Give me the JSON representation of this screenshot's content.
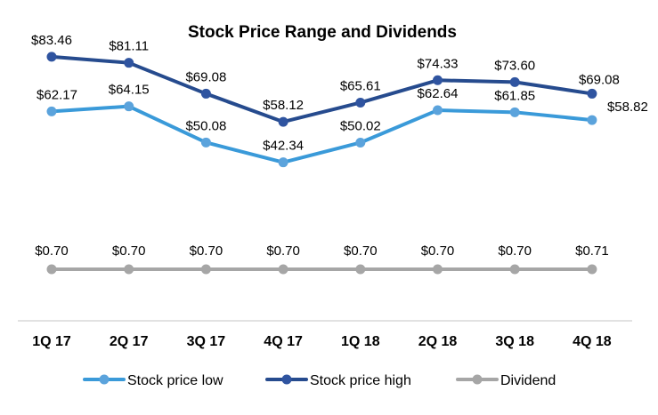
{
  "chart_data": {
    "type": "line",
    "title": "Stock Price Range and Dividends",
    "xlabel": "",
    "ylabel": "",
    "categories": [
      "1Q 17",
      "2Q 17",
      "3Q 17",
      "4Q 17",
      "1Q 18",
      "2Q 18",
      "3Q 18",
      "4Q 18"
    ],
    "ylim": [
      0,
      90
    ],
    "grid": false,
    "legend_position": "bottom",
    "series": [
      {
        "name": "Stock price low",
        "color": "#3A9AD9",
        "marker_color": "#5BA3DC",
        "values": [
          62.17,
          64.15,
          50.08,
          42.34,
          50.02,
          62.64,
          61.85,
          58.82
        ],
        "labels": [
          "$62.17",
          "$64.15",
          "$50.08",
          "$42.34",
          "$50.02",
          "$62.64",
          "$61.85",
          "$58.82"
        ]
      },
      {
        "name": "Stock price high",
        "color": "#264B8E",
        "marker_color": "#2F54A0",
        "values": [
          83.46,
          81.11,
          69.08,
          58.12,
          65.61,
          74.33,
          73.6,
          69.08
        ],
        "labels": [
          "$83.46",
          "$81.11",
          "$69.08",
          "$58.12",
          "$65.61",
          "$74.33",
          "$73.60",
          "$69.08"
        ]
      },
      {
        "name": "Dividend",
        "color": "#A6A6A6",
        "marker_color": "#A6A6A6",
        "values": [
          0.7,
          0.7,
          0.7,
          0.7,
          0.7,
          0.7,
          0.7,
          0.71
        ],
        "labels": [
          "$0.70",
          "$0.70",
          "$0.70",
          "$0.70",
          "$0.70",
          "$0.70",
          "$0.70",
          "$0.71"
        ]
      }
    ]
  }
}
